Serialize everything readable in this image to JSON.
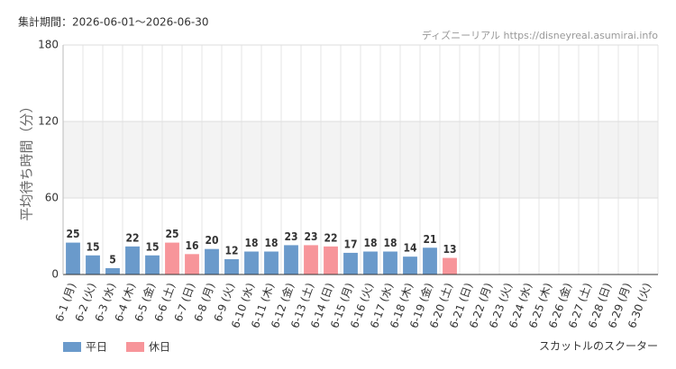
{
  "chart_data": {
    "type": "bar",
    "title": "集計期間：2026-06-01～2026-06-30",
    "source": "ディズニーリアル https://disneyreal.asumirai.info",
    "y_label": "平均待ち時間（分）",
    "footer": "スカットルのスクーター",
    "categories": [
      "6-1 (月)",
      "6-2 (火)",
      "6-3 (水)",
      "6-4 (木)",
      "6-5 (金)",
      "6-6 (土)",
      "6-7 (日)",
      "6-8 (月)",
      "6-9 (火)",
      "6-10 (水)",
      "6-11 (木)",
      "6-12 (金)",
      "6-13 (土)",
      "6-14 (日)",
      "6-15 (月)",
      "6-16 (火)",
      "6-17 (水)",
      "6-18 (木)",
      "6-19 (金)",
      "6-20 (土)",
      "6-21 (日)",
      "6-22 (月)",
      "6-23 (火)",
      "6-24 (水)",
      "6-25 (木)",
      "6-26 (金)",
      "6-27 (土)",
      "6-28 (日)",
      "6-29 (月)",
      "6-30 (火)"
    ],
    "label_colors": [
      "#333",
      "#333",
      "#333",
      "#333",
      "#333",
      "#f08080",
      "#f08080",
      "#333",
      "#333",
      "#333",
      "#333",
      "#333",
      "#f08080",
      "#f08080",
      "#333",
      "#333",
      "#333",
      "#333",
      "#333",
      "#f08080",
      "#f08080",
      "#333",
      "#333",
      "#333",
      "#333",
      "#333",
      "#f08080",
      "#f08080",
      "#333",
      "#333"
    ],
    "series": [
      {
        "name": "平日",
        "color": "#6a9acb",
        "values": [
          25,
          15,
          5,
          22,
          15,
          null,
          null,
          20,
          12,
          18,
          18,
          23,
          null,
          null,
          17,
          18,
          18,
          14,
          21,
          null,
          null,
          null,
          null,
          null,
          null,
          null,
          null,
          null,
          null,
          null
        ]
      },
      {
        "name": "休日",
        "color": "#f7959a",
        "values": [
          null,
          null,
          null,
          null,
          null,
          25,
          16,
          null,
          null,
          null,
          null,
          null,
          23,
          22,
          null,
          null,
          null,
          null,
          null,
          13,
          null,
          null,
          null,
          null,
          null,
          null,
          null,
          null,
          null,
          null
        ]
      }
    ],
    "ylim": [
      0,
      180
    ],
    "yticks": [
      0,
      60,
      120,
      180
    ],
    "grid": true
  }
}
